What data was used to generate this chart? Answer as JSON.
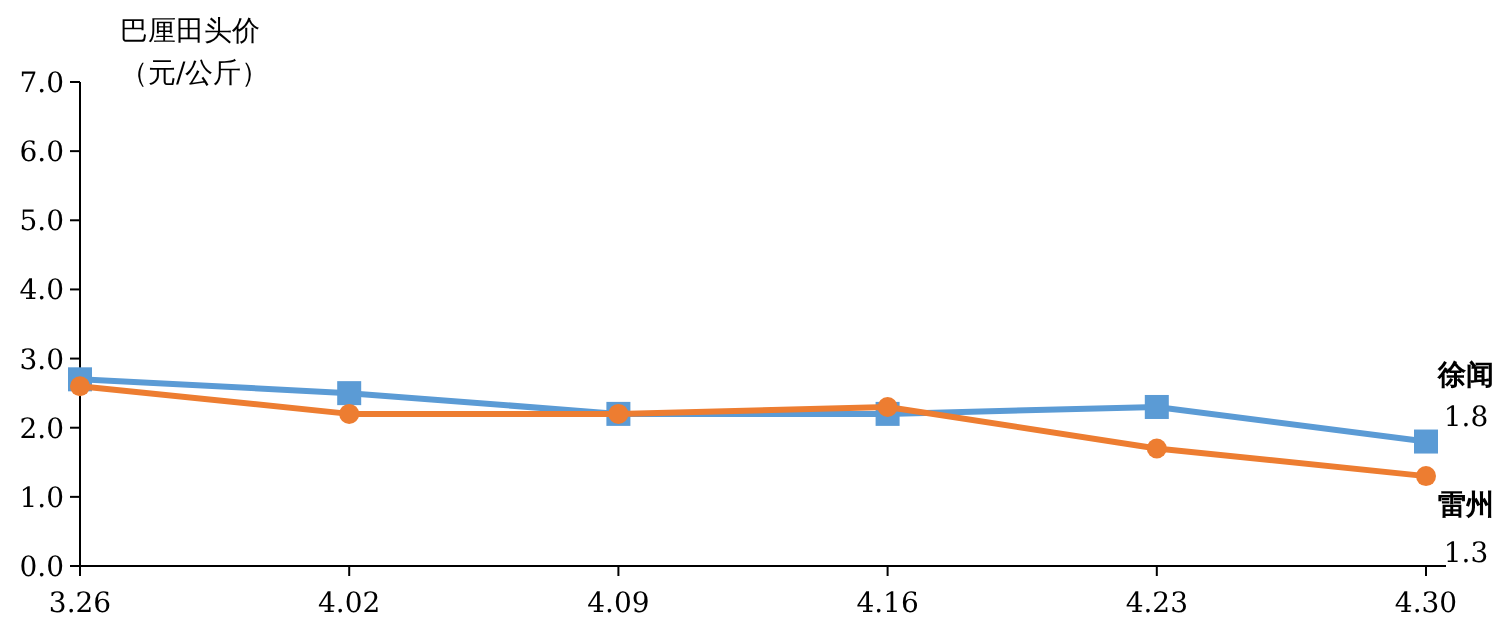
{
  "chart_data": {
    "type": "line",
    "ylabel": "巴厘田头价（元/公斤）",
    "categories": [
      "3.26",
      "4.02",
      "4.09",
      "4.16",
      "4.23",
      "4.30"
    ],
    "series": [
      {
        "name": "徐闻",
        "color": "#5b9bd5",
        "marker": "square",
        "values": [
          2.7,
          2.5,
          2.2,
          2.2,
          2.3,
          1.8
        ],
        "value_labels": [
          null,
          null,
          null,
          null,
          null,
          "1.8"
        ]
      },
      {
        "name": "雷州",
        "color": "#ed7d31",
        "marker": "circle",
        "values": [
          2.6,
          2.2,
          2.2,
          2.3,
          1.7,
          1.3
        ],
        "value_labels": [
          null,
          null,
          null,
          null,
          null,
          "1.3"
        ]
      }
    ],
    "ylim": [
      0,
      7
    ],
    "yticks": [
      {
        "value": 0,
        "label": "0.0"
      },
      {
        "value": 1,
        "label": "1.0"
      },
      {
        "value": 2,
        "label": "2.0"
      },
      {
        "value": 3,
        "label": "3.0"
      },
      {
        "value": 4,
        "label": "4.0"
      },
      {
        "value": 5,
        "label": "5.0"
      },
      {
        "value": 6,
        "label": "6.0"
      },
      {
        "value": 7,
        "label": "7.0"
      }
    ],
    "grid": false,
    "line_style": "solid"
  }
}
